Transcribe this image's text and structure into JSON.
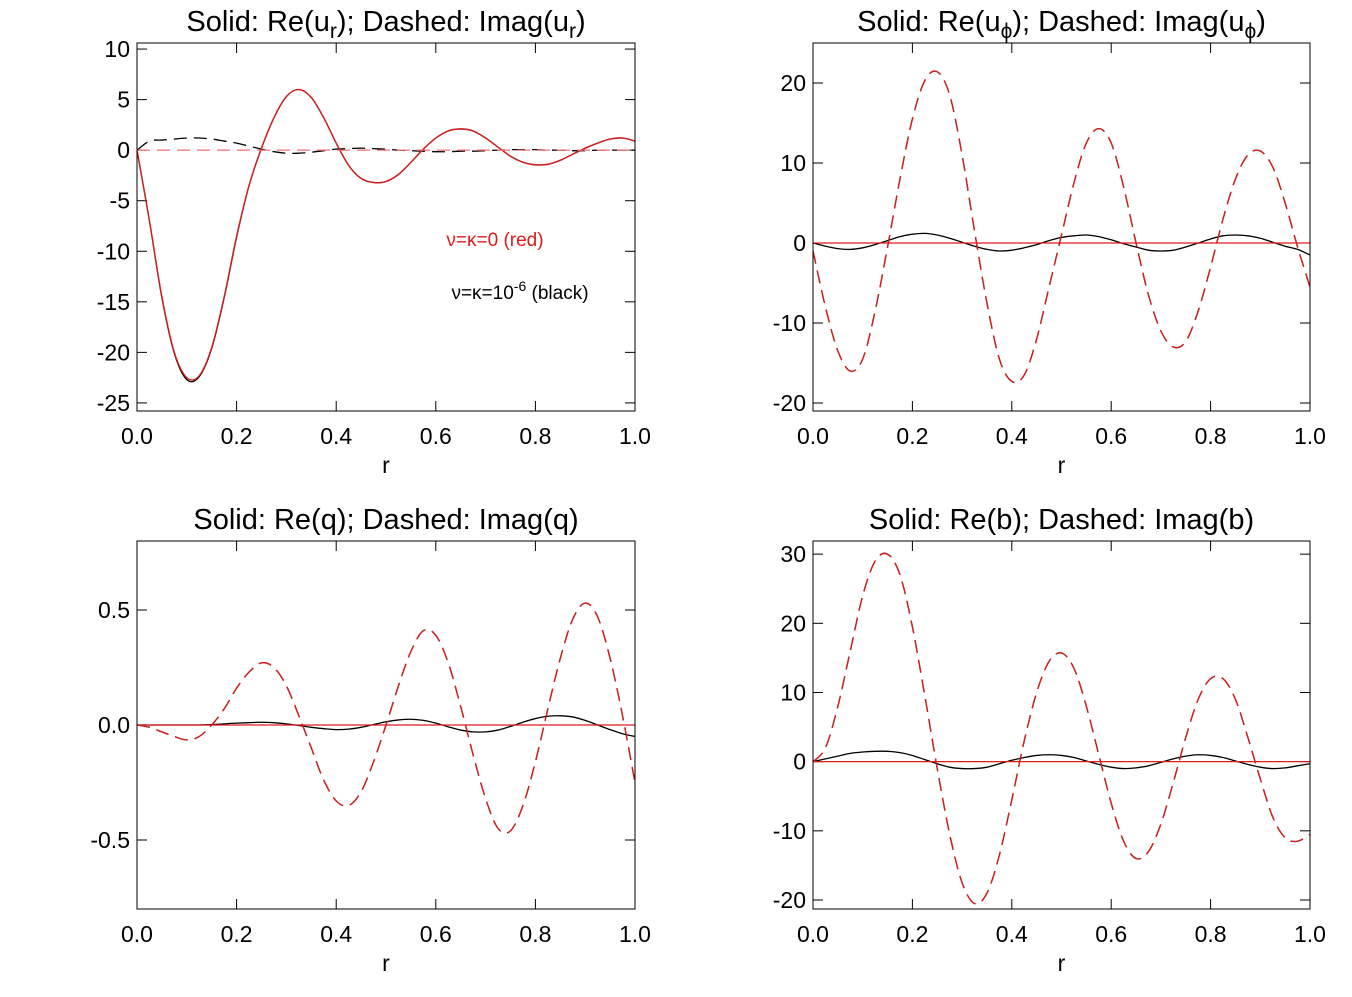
{
  "chart_data": [
    {
      "type": "line",
      "title": [
        "Solid: Re(u",
        "r",
        "); Dashed: Imag(u",
        "r",
        ")"
      ],
      "xlabel": "r",
      "xlim": [
        0,
        1
      ],
      "xticks": [
        {
          "value": 0,
          "label": "0.0"
        },
        {
          "value": 0.2,
          "label": "0.2"
        },
        {
          "value": 0.4,
          "label": "0.4"
        },
        {
          "value": 0.6,
          "label": "0.6"
        },
        {
          "value": 0.8,
          "label": "0.8"
        },
        {
          "value": 1,
          "label": "1.0"
        }
      ],
      "ylim": [
        -25.8,
        10.6
      ],
      "yticks": [
        -25,
        -20,
        -15,
        -10,
        -5,
        0,
        5,
        10
      ],
      "annotations": [
        {
          "text": [
            "ν=κ=0 (red)"
          ],
          "color": "#e01a1a"
        },
        {
          "text": [
            "ν=κ=10",
            "-6",
            " (black)"
          ],
          "color": "#000000"
        }
      ],
      "x": [
        0,
        0.025,
        0.05,
        0.075,
        0.1,
        0.125,
        0.15,
        0.175,
        0.2,
        0.225,
        0.25,
        0.275,
        0.3,
        0.325,
        0.35,
        0.375,
        0.4,
        0.425,
        0.45,
        0.475,
        0.5,
        0.525,
        0.55,
        0.575,
        0.6,
        0.625,
        0.65,
        0.675,
        0.7,
        0.725,
        0.75,
        0.775,
        0.8,
        0.825,
        0.85,
        0.875,
        0.9,
        0.925,
        0.95,
        0.975,
        1
      ],
      "series": [
        {
          "color": "#000000",
          "dashed": false,
          "values": [
            0,
            -7,
            -14.6,
            -20.1,
            -22.7,
            -22.4,
            -19.6,
            -14.6,
            -8.6,
            -3.5,
            0.2,
            3.2,
            5.3,
            6,
            5.2,
            3.2,
            0.7,
            -1.5,
            -2.8,
            -3.2,
            -3.1,
            -2.4,
            -1.2,
            0.1,
            1.2,
            1.9,
            2.1,
            1.9,
            1.2,
            0.3,
            -0.6,
            -1.2,
            -1.45,
            -1.4,
            -1,
            -0.4,
            0.2,
            0.7,
            1.1,
            1.2,
            0.9
          ]
        },
        {
          "color": "#000000",
          "dashed": true,
          "values": [
            0,
            0.9,
            1,
            1.1,
            1.2,
            1.2,
            1.1,
            0.9,
            0.7,
            0.4,
            0.1,
            -0.15,
            -0.3,
            -0.3,
            -0.2,
            -0.05,
            0.1,
            0.15,
            0.2,
            0.15,
            0.1,
            0,
            -0.05,
            -0.1,
            -0.15,
            -0.15,
            -0.1,
            -0.1,
            -0.05,
            0,
            0.05,
            0.05,
            0.05,
            0,
            0,
            -0.05,
            -0.05,
            0,
            0,
            0,
            0
          ]
        },
        {
          "color": "#e01a1a",
          "dashed": false,
          "values": [
            0,
            -7,
            -14.5,
            -20,
            -22.5,
            -22.3,
            -19.5,
            -14.5,
            -8.5,
            -3.5,
            0.2,
            3.2,
            5.3,
            6,
            5.2,
            3.2,
            0.7,
            -1.5,
            -2.8,
            -3.2,
            -3.1,
            -2.4,
            -1.2,
            0.1,
            1.2,
            1.9,
            2.1,
            1.9,
            1.2,
            0.3,
            -0.6,
            -1.2,
            -1.45,
            -1.4,
            -1,
            -0.4,
            0.2,
            0.7,
            1.1,
            1.2,
            0.9
          ]
        },
        {
          "color": "#f07070",
          "dashed": true,
          "values": [
            0,
            0,
            0,
            0,
            0,
            0,
            0,
            0,
            0,
            0,
            0,
            0,
            0,
            0,
            0,
            0,
            0,
            0,
            0,
            0,
            0,
            0,
            0,
            0,
            0,
            0,
            0,
            0,
            0,
            0,
            0,
            0,
            0,
            0,
            0,
            0,
            0,
            0,
            0,
            0,
            0
          ]
        }
      ]
    },
    {
      "type": "line",
      "title": [
        "Solid: Re(u",
        "ϕ",
        "); Dashed: Imag(u",
        "ϕ",
        ")"
      ],
      "xlabel": "r",
      "xlim": [
        0,
        1
      ],
      "xticks": [
        {
          "value": 0,
          "label": "0.0"
        },
        {
          "value": 0.2,
          "label": "0.2"
        },
        {
          "value": 0.4,
          "label": "0.4"
        },
        {
          "value": 0.6,
          "label": "0.6"
        },
        {
          "value": 0.8,
          "label": "0.8"
        },
        {
          "value": 1,
          "label": "1.0"
        }
      ],
      "ylim": [
        -21,
        25
      ],
      "yticks": [
        -20,
        -10,
        0,
        10,
        20
      ],
      "x": [
        0,
        0.025,
        0.05,
        0.075,
        0.1,
        0.125,
        0.15,
        0.175,
        0.2,
        0.225,
        0.25,
        0.275,
        0.3,
        0.325,
        0.35,
        0.375,
        0.4,
        0.425,
        0.45,
        0.475,
        0.5,
        0.525,
        0.55,
        0.575,
        0.6,
        0.625,
        0.65,
        0.675,
        0.7,
        0.725,
        0.75,
        0.775,
        0.8,
        0.825,
        0.85,
        0.875,
        0.9,
        0.925,
        0.95,
        0.975,
        1
      ],
      "series": [
        {
          "color": "#000000",
          "dashed": false,
          "values": [
            0,
            -0.4,
            -0.7,
            -0.8,
            -0.6,
            -0.2,
            0.3,
            0.8,
            1.1,
            1.2,
            1,
            0.6,
            0.1,
            -0.4,
            -0.8,
            -1,
            -0.9,
            -0.6,
            -0.2,
            0.3,
            0.7,
            0.9,
            1,
            0.8,
            0.4,
            -0.1,
            -0.5,
            -0.9,
            -1,
            -0.9,
            -0.5,
            0,
            0.5,
            0.9,
            1,
            0.9,
            0.6,
            0.1,
            -0.4,
            -0.8,
            -1.5
          ]
        },
        {
          "color": "#000000",
          "dashed": true,
          "values": [
            -1,
            -8,
            -13.5,
            -16,
            -14.5,
            -8.5,
            -0.5,
            8,
            15.5,
            20.3,
            21.4,
            18.5,
            11,
            1.5,
            -7.5,
            -14.5,
            -17.3,
            -16.5,
            -12,
            -5.5,
            1,
            7.5,
            12.5,
            14.3,
            12.5,
            7,
            0,
            -6.5,
            -11,
            -13,
            -12.3,
            -8.5,
            -3,
            3,
            8,
            11,
            11.5,
            9.5,
            5,
            -0.5,
            -5.5
          ]
        },
        {
          "color": "#e01a1a",
          "dashed": false,
          "values": [
            0,
            0,
            0,
            0,
            0,
            0,
            0,
            0,
            0,
            0,
            0,
            0,
            0,
            0,
            0,
            0,
            0,
            0,
            0,
            0,
            0,
            0,
            0,
            0,
            0,
            0,
            0,
            0,
            0,
            0,
            0,
            0,
            0,
            0,
            0,
            0,
            0,
            0,
            0,
            0,
            0
          ]
        },
        {
          "color": "#e01a1a",
          "dashed": true,
          "values": [
            -1,
            -8,
            -13.5,
            -16,
            -14.5,
            -8.5,
            -0.5,
            8,
            15.5,
            20.3,
            21.4,
            18.5,
            11,
            1.5,
            -7.5,
            -14.5,
            -17.3,
            -16.5,
            -12,
            -5.5,
            1,
            7.5,
            12.5,
            14.3,
            12.5,
            7,
            0,
            -6.5,
            -11,
            -13,
            -12.3,
            -8.5,
            -3,
            3,
            8,
            11,
            11.5,
            9.5,
            5,
            -0.5,
            -5.5
          ]
        }
      ]
    },
    {
      "type": "line",
      "title": [
        "Solid: Re(q); Dashed: Imag(q)"
      ],
      "xlabel": "r",
      "xlim": [
        0,
        1
      ],
      "xticks": [
        {
          "value": 0,
          "label": "0.0"
        },
        {
          "value": 0.2,
          "label": "0.2"
        },
        {
          "value": 0.4,
          "label": "0.4"
        },
        {
          "value": 0.6,
          "label": "0.6"
        },
        {
          "value": 0.8,
          "label": "0.8"
        },
        {
          "value": 1,
          "label": "1.0"
        }
      ],
      "ylim": [
        -0.8,
        0.8
      ],
      "yticks": [
        -0.5,
        {
          "value": 0,
          "label": "0.0"
        },
        0.5
      ],
      "x": [
        0,
        0.025,
        0.05,
        0.075,
        0.1,
        0.125,
        0.15,
        0.175,
        0.2,
        0.225,
        0.25,
        0.275,
        0.3,
        0.325,
        0.35,
        0.375,
        0.4,
        0.425,
        0.45,
        0.475,
        0.5,
        0.525,
        0.55,
        0.575,
        0.6,
        0.625,
        0.65,
        0.675,
        0.7,
        0.725,
        0.75,
        0.775,
        0.8,
        0.825,
        0.85,
        0.875,
        0.9,
        0.925,
        0.95,
        0.975,
        1
      ],
      "series": [
        {
          "color": "#000000",
          "dashed": false,
          "values": [
            0,
            0,
            0,
            0,
            0,
            0,
            0.002,
            0.005,
            0.008,
            0.01,
            0.012,
            0.01,
            0.005,
            -0.002,
            -0.01,
            -0.016,
            -0.02,
            -0.018,
            -0.01,
            0.002,
            0.014,
            0.022,
            0.025,
            0.02,
            0.008,
            -0.008,
            -0.022,
            -0.03,
            -0.03,
            -0.022,
            -0.006,
            0.012,
            0.028,
            0.038,
            0.04,
            0.035,
            0.02,
            0,
            -0.02,
            -0.038,
            -0.05
          ]
        },
        {
          "color": "#000000",
          "dashed": true,
          "values": [
            0,
            -0.01,
            -0.03,
            -0.05,
            -0.065,
            -0.05,
            0,
            0.07,
            0.16,
            0.23,
            0.27,
            0.25,
            0.17,
            0.04,
            -0.1,
            -0.24,
            -0.33,
            -0.35,
            -0.29,
            -0.16,
            0,
            0.17,
            0.32,
            0.41,
            0.39,
            0.27,
            0.08,
            -0.13,
            -0.32,
            -0.45,
            -0.46,
            -0.35,
            -0.16,
            0.07,
            0.29,
            0.46,
            0.53,
            0.47,
            0.29,
            0.04,
            -0.25
          ]
        },
        {
          "color": "#e01a1a",
          "dashed": false,
          "values": [
            0,
            0,
            0,
            0,
            0,
            0,
            0,
            0,
            0,
            0,
            0,
            0,
            0,
            0,
            0,
            0,
            0,
            0,
            0,
            0,
            0,
            0,
            0,
            0,
            0,
            0,
            0,
            0,
            0,
            0,
            0,
            0,
            0,
            0,
            0,
            0,
            0,
            0,
            0,
            0,
            0
          ]
        },
        {
          "color": "#e01a1a",
          "dashed": true,
          "values": [
            0,
            -0.01,
            -0.03,
            -0.05,
            -0.065,
            -0.05,
            0,
            0.07,
            0.16,
            0.23,
            0.27,
            0.25,
            0.17,
            0.04,
            -0.1,
            -0.24,
            -0.33,
            -0.35,
            -0.29,
            -0.16,
            0,
            0.17,
            0.32,
            0.41,
            0.39,
            0.27,
            0.08,
            -0.13,
            -0.32,
            -0.45,
            -0.46,
            -0.35,
            -0.16,
            0.07,
            0.29,
            0.46,
            0.53,
            0.47,
            0.29,
            0.04,
            -0.25
          ]
        }
      ]
    },
    {
      "type": "line",
      "title": [
        "Solid: Re(b); Dashed: Imag(b)"
      ],
      "xlabel": "r",
      "xlim": [
        0,
        1
      ],
      "xticks": [
        {
          "value": 0,
          "label": "0.0"
        },
        {
          "value": 0.2,
          "label": "0.2"
        },
        {
          "value": 0.4,
          "label": "0.4"
        },
        {
          "value": 0.6,
          "label": "0.6"
        },
        {
          "value": 0.8,
          "label": "0.8"
        },
        {
          "value": 1,
          "label": "1.0"
        }
      ],
      "ylim": [
        -21.3,
        31.9
      ],
      "yticks": [
        -20,
        -10,
        0,
        10,
        20,
        30
      ],
      "x": [
        0,
        0.025,
        0.05,
        0.075,
        0.1,
        0.125,
        0.15,
        0.175,
        0.2,
        0.225,
        0.25,
        0.275,
        0.3,
        0.325,
        0.35,
        0.375,
        0.4,
        0.425,
        0.45,
        0.475,
        0.5,
        0.525,
        0.55,
        0.575,
        0.6,
        0.625,
        0.65,
        0.675,
        0.7,
        0.725,
        0.75,
        0.775,
        0.8,
        0.825,
        0.85,
        0.875,
        0.9,
        0.925,
        0.95,
        0.975,
        1
      ],
      "series": [
        {
          "color": "#000000",
          "dashed": false,
          "values": [
            0,
            0.4,
            0.8,
            1.2,
            1.4,
            1.5,
            1.5,
            1.3,
            0.9,
            0.3,
            -0.3,
            -0.8,
            -1,
            -1,
            -0.8,
            -0.3,
            0.2,
            0.6,
            0.9,
            1,
            0.9,
            0.6,
            0.1,
            -0.4,
            -0.8,
            -1,
            -0.9,
            -0.6,
            -0.1,
            0.4,
            0.8,
            1,
            0.9,
            0.6,
            0.1,
            -0.4,
            -0.8,
            -1,
            -0.9,
            -0.6,
            -0.3
          ]
        },
        {
          "color": "#000000",
          "dashed": true,
          "values": [
            0,
            2,
            8,
            16,
            24,
            29,
            30,
            27,
            19.5,
            9.5,
            -1,
            -10.5,
            -17.5,
            -20.5,
            -19,
            -13.5,
            -5.5,
            3,
            10,
            14.5,
            15.7,
            13.5,
            8,
            1,
            -6,
            -11.5,
            -14,
            -13,
            -9,
            -3,
            3.5,
            9,
            12,
            12,
            9,
            3.5,
            -2.5,
            -8,
            -11,
            -11.5,
            -10.5
          ]
        },
        {
          "color": "#e01a1a",
          "dashed": false,
          "values": [
            0,
            0,
            0,
            0,
            0,
            0,
            0,
            0,
            0,
            0,
            0,
            0,
            0,
            0,
            0,
            0,
            0,
            0,
            0,
            0,
            0,
            0,
            0,
            0,
            0,
            0,
            0,
            0,
            0,
            0,
            0,
            0,
            0,
            0,
            0,
            0,
            0,
            0,
            0,
            0,
            0
          ]
        },
        {
          "color": "#e01a1a",
          "dashed": true,
          "values": [
            0,
            2,
            8,
            16,
            24,
            29,
            30,
            27,
            19.5,
            9.5,
            -1,
            -10.5,
            -17.5,
            -20.5,
            -19,
            -13.5,
            -5.5,
            3,
            10,
            14.5,
            15.7,
            13.5,
            8,
            1,
            -6,
            -11.5,
            -14,
            -13,
            -9,
            -3,
            3.5,
            9,
            12,
            12,
            9,
            3.5,
            -2.5,
            -8,
            -11,
            -11.5,
            -10.5
          ]
        }
      ]
    }
  ]
}
